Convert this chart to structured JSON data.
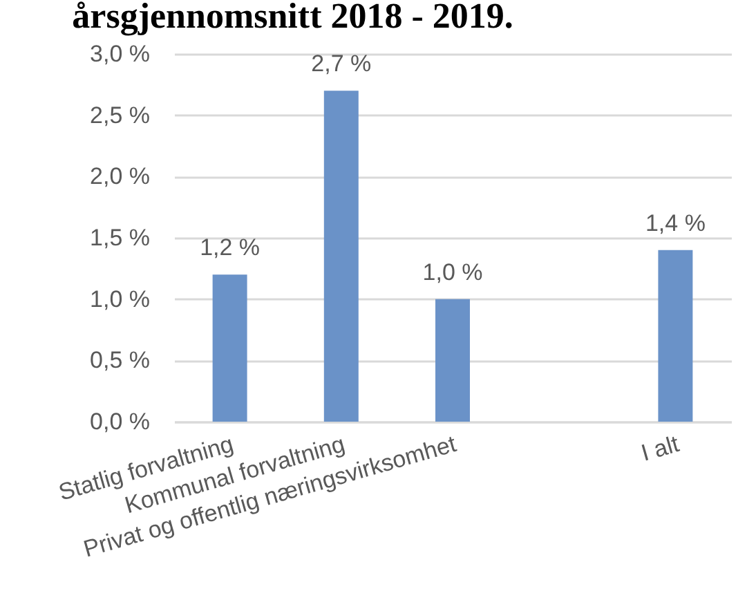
{
  "chart_data": {
    "type": "bar",
    "title": "årsgjennomsnitt 2018 - 2019.",
    "categories": [
      "Statlig forvaltning",
      "Kommunal forvaltning",
      "Privat og offentlig næringsvirksomhet",
      null,
      "I alt"
    ],
    "values": [
      1.2,
      2.7,
      1.0,
      null,
      1.4
    ],
    "color": "#6a92c8",
    "value_labels": [
      "1,2 %",
      "2,7 %",
      "1,0 %",
      null,
      "1,4 %"
    ],
    "ylim": [
      0,
      3
    ],
    "yticks": [
      {
        "value": 0,
        "label": "0,0 %"
      },
      {
        "value": 0.5,
        "label": "0,5 %"
      },
      {
        "value": 1,
        "label": "1,0 %"
      },
      {
        "value": 1.5,
        "label": "1,5 %"
      },
      {
        "value": 2,
        "label": "2,0 %"
      },
      {
        "value": 2.5,
        "label": "2,5 %"
      },
      {
        "value": 3,
        "label": "3,0 %"
      }
    ],
    "grid": "y"
  }
}
